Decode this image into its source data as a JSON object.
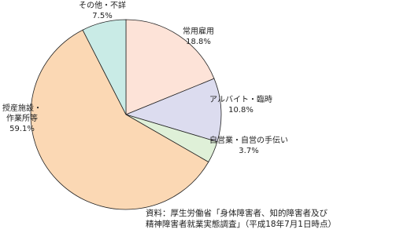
{
  "chart_data": {
    "type": "pie",
    "categories": [
      "常用雇用",
      "アルバイト・臨時",
      "自営業・自営の手伝い",
      "授産施設・作業所等",
      "その他・不詳"
    ],
    "values": [
      18.8,
      10.8,
      3.7,
      59.1,
      7.5
    ],
    "value_labels": [
      "18.8%",
      "10.8%",
      "3.7%",
      "59.1%",
      "7.5%"
    ],
    "colors": [
      "#fde3d8",
      "#dcdcef",
      "#dff0d8",
      "#fbd8b4",
      "#c9ebe6"
    ]
  },
  "source": [
    "資料：厚生労働省「身体障害者、知的障害者及び",
    "精神障害者就業実態調査」（平成18年7月1日時点）"
  ]
}
